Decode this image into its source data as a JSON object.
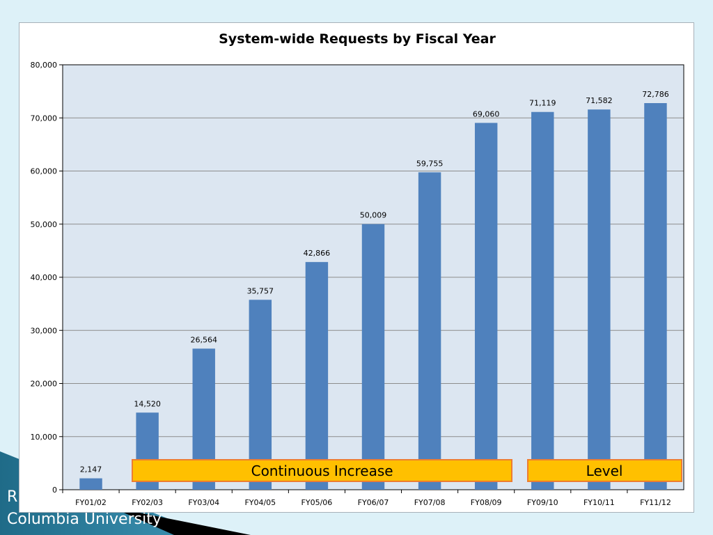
{
  "slide": {
    "footer_line1": "R",
    "footer_line2": "Columbia University"
  },
  "phases": [
    {
      "label": "Continuous Increase",
      "from": "FY02/03",
      "to": "FY08/09"
    },
    {
      "label": "Level",
      "from": "FY09/10",
      "to": "FY11/12"
    }
  ],
  "colors": {
    "bar": "#4f81bd",
    "plot_bg": "#dce6f1",
    "phase_fill": "#ffc000",
    "phase_border": "#ed7d31"
  },
  "chart_data": {
    "type": "bar",
    "title": "System-wide Requests by Fiscal Year",
    "xlabel": "",
    "ylabel": "",
    "categories": [
      "FY01/02",
      "FY02/03",
      "FY03/04",
      "FY04/05",
      "FY05/06",
      "FY06/07",
      "FY07/08",
      "FY08/09",
      "FY09/10",
      "FY10/11",
      "FY11/12"
    ],
    "values": [
      2147,
      14520,
      26564,
      35757,
      42866,
      50009,
      59755,
      69060,
      71119,
      71582,
      72786
    ],
    "data_labels": [
      "2,147",
      "14,520",
      "26,564",
      "35,757",
      "42,866",
      "50,009",
      "59,755",
      "69,060",
      "71,119",
      "71,582",
      "72,786"
    ],
    "ylim": [
      0,
      80000
    ],
    "yticks": [
      0,
      10000,
      20000,
      30000,
      40000,
      50000,
      60000,
      70000,
      80000
    ],
    "ytick_labels": [
      "0",
      "10,000",
      "20,000",
      "30,000",
      "40,000",
      "50,000",
      "60,000",
      "70,000",
      "80,000"
    ],
    "grid": true,
    "legend": "none"
  }
}
